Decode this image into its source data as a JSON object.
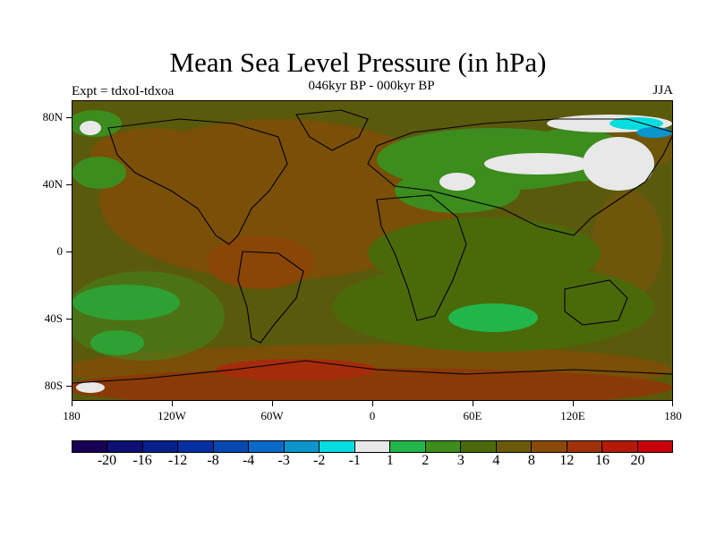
{
  "title": "Mean Sea Level Pressure (in hPa)",
  "subtitle": "046kyr BP - 000kyr BP",
  "left_label": "Expt = tdxoI-tdxoa",
  "right_label": "JJA",
  "lat_labels": [
    "80N",
    "40N",
    "0",
    "40S",
    "80S"
  ],
  "lon_labels": [
    "180",
    "120W",
    "60W",
    "0",
    "60E",
    "120E",
    "180"
  ],
  "colorbar": {
    "colors": [
      "#1a0055",
      "#0e0f73",
      "#08208c",
      "#062fa0",
      "#0548b0",
      "#0a6ac8",
      "#0a95cc",
      "#06dde0",
      "#e8e8e8",
      "#22b54a",
      "#3c8c1e",
      "#4a6a0a",
      "#6a5a08",
      "#884a06",
      "#a0320a",
      "#b41a0a",
      "#c8000a"
    ],
    "labels": [
      "-20",
      "-16",
      "-12",
      "-8",
      "-4",
      "-3",
      "-2",
      "-1",
      "1",
      "2",
      "3",
      "4",
      "8",
      "12",
      "16",
      "20"
    ]
  }
}
